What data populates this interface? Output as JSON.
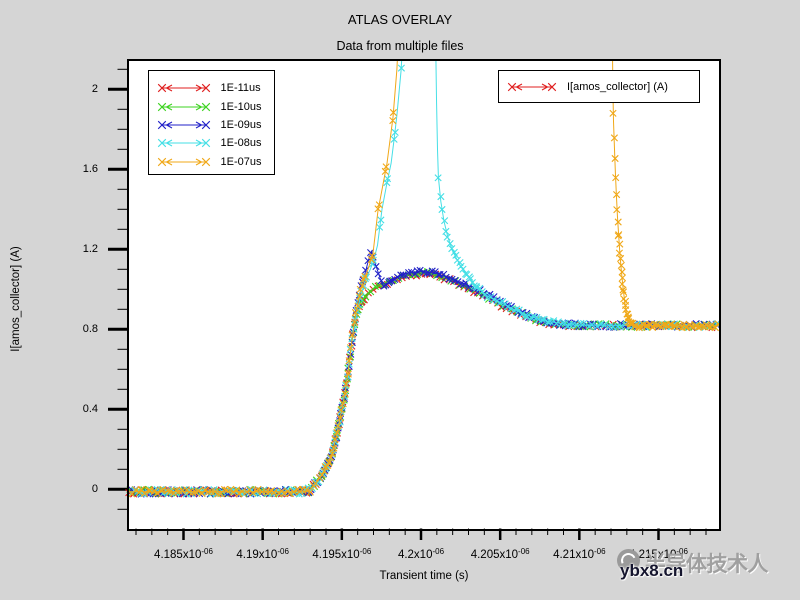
{
  "title": "ATLAS OVERLAY",
  "subtitle": "Data from multiple files",
  "axes": {
    "x": {
      "label": "Transient time (s)",
      "unit": "s",
      "major_ticks": [
        {
          "t": 4.185,
          "mant": "4.185x10",
          "exp": "-06"
        },
        {
          "t": 4.19,
          "mant": "4.19x10",
          "exp": "-06"
        },
        {
          "t": 4.195,
          "mant": "4.195x10",
          "exp": "-06"
        },
        {
          "t": 4.2,
          "mant": "4.2x10",
          "exp": "-06"
        },
        {
          "t": 4.205,
          "mant": "4.205x10",
          "exp": "-06"
        },
        {
          "t": 4.21,
          "mant": "4.21x10",
          "exp": "-06"
        },
        {
          "t": 4.215,
          "mant": "4.215x10",
          "exp": "-06"
        }
      ],
      "minor": {
        "min": 4.182,
        "max": 4.218,
        "step": 0.001
      }
    },
    "y": {
      "label": "I[amos_collector] (A)",
      "major_ticks": [
        {
          "v": 0,
          "label": "0"
        },
        {
          "v": 0.4,
          "label": "0.4"
        },
        {
          "v": 0.8,
          "label": "0.8"
        },
        {
          "v": 1.2,
          "label": "1.2"
        },
        {
          "v": 1.6,
          "label": "1.6"
        },
        {
          "v": 2,
          "label": "2"
        }
      ],
      "minor": {
        "min": -0.1,
        "max": 2.1,
        "step": 0.1
      }
    }
  },
  "legend": {
    "entries": [
      {
        "label": "1E-11us",
        "color": "#e01f1f"
      },
      {
        "label": "1E-10us",
        "color": "#3ed321"
      },
      {
        "label": "1E-09us",
        "color": "#2121c8"
      },
      {
        "label": "1E-08us",
        "color": "#45dfe6"
      },
      {
        "label": "1E-07us",
        "color": "#f0a818"
      }
    ]
  },
  "legend2": {
    "label": "I[amos_collector] (A)",
    "color": "#e01f1f"
  },
  "watermark": {
    "site": "ybx8.cn",
    "text": "半导体技术人"
  },
  "chart_data": {
    "type": "line",
    "title": "ATLAS OVERLAY",
    "subtitle": "Data from multiple files",
    "xlabel": "Transient time (s)",
    "ylabel": "I[amos_collector] (A)",
    "x_unit": "1e-6 s",
    "xlim": [
      4.1815,
      4.2189
    ],
    "ylim": [
      -0.195,
      2.143
    ],
    "series": [
      {
        "name": "1E-11us",
        "color": "#e01f1f",
        "points": [
          [
            4.1816,
            -0.012
          ],
          [
            4.1928,
            -0.012
          ],
          [
            4.1931,
            0.005
          ],
          [
            4.1935,
            0.045
          ],
          [
            4.1938,
            0.075
          ],
          [
            4.194,
            0.11
          ],
          [
            4.1942,
            0.14
          ],
          [
            4.1944,
            0.18
          ],
          [
            4.1946,
            0.25
          ],
          [
            4.1948,
            0.32
          ],
          [
            4.195,
            0.4
          ],
          [
            4.1952,
            0.48
          ],
          [
            4.1954,
            0.59
          ],
          [
            4.1956,
            0.72
          ],
          [
            4.1958,
            0.82
          ],
          [
            4.196,
            0.9
          ],
          [
            4.1962,
            0.93
          ],
          [
            4.1965,
            0.965
          ],
          [
            4.1968,
            0.985
          ],
          [
            4.1972,
            1.005
          ],
          [
            4.1977,
            1.025
          ],
          [
            4.1984,
            1.05
          ],
          [
            4.1992,
            1.068
          ],
          [
            4.2,
            1.078
          ],
          [
            4.2009,
            1.068
          ],
          [
            4.2018,
            1.046
          ],
          [
            4.2028,
            1.012
          ],
          [
            4.2038,
            0.972
          ],
          [
            4.2048,
            0.932
          ],
          [
            4.2058,
            0.892
          ],
          [
            4.2066,
            0.862
          ],
          [
            4.2074,
            0.84
          ],
          [
            4.2083,
            0.826
          ],
          [
            4.2093,
            0.82
          ],
          [
            4.2102,
            0.817
          ],
          [
            4.2188,
            0.817
          ]
        ],
        "marker_segments": [
          [
            4.1816,
            4.1937,
            0.0002,
            1.2,
            0
          ],
          [
            4.1937,
            4.1964,
            0.0001,
            0.8,
            0
          ],
          [
            4.1964,
            4.2098,
            0.0003,
            0.9,
            0
          ],
          [
            4.2098,
            4.2188,
            0.00026,
            1.0,
            0
          ]
        ]
      },
      {
        "name": "1E-10us",
        "color": "#3ed321",
        "points": [
          [
            4.1816,
            -0.012
          ],
          [
            4.1928,
            -0.012
          ],
          [
            4.1931,
            0.005
          ],
          [
            4.1935,
            0.045
          ],
          [
            4.1938,
            0.075
          ],
          [
            4.194,
            0.11
          ],
          [
            4.1942,
            0.14
          ],
          [
            4.1944,
            0.18
          ],
          [
            4.1946,
            0.25
          ],
          [
            4.1948,
            0.32
          ],
          [
            4.195,
            0.4
          ],
          [
            4.1952,
            0.48
          ],
          [
            4.1954,
            0.59
          ],
          [
            4.1956,
            0.72
          ],
          [
            4.1958,
            0.82
          ],
          [
            4.196,
            0.9
          ],
          [
            4.1962,
            0.935
          ],
          [
            4.1965,
            0.972
          ],
          [
            4.1968,
            0.992
          ],
          [
            4.1972,
            1.012
          ],
          [
            4.1977,
            1.032
          ],
          [
            4.1984,
            1.057
          ],
          [
            4.1992,
            1.075
          ],
          [
            4.2,
            1.085
          ],
          [
            4.2009,
            1.075
          ],
          [
            4.2018,
            1.052
          ],
          [
            4.2028,
            1.018
          ],
          [
            4.2038,
            0.978
          ],
          [
            4.2048,
            0.938
          ],
          [
            4.2058,
            0.898
          ],
          [
            4.2066,
            0.868
          ],
          [
            4.2074,
            0.845
          ],
          [
            4.2083,
            0.829
          ],
          [
            4.2093,
            0.821
          ],
          [
            4.2102,
            0.818
          ],
          [
            4.2188,
            0.818
          ]
        ],
        "marker_segments": [
          [
            4.18164,
            4.1937,
            0.0002,
            1.2,
            0
          ],
          [
            4.19372,
            4.1964,
            0.0001,
            0.8,
            0
          ],
          [
            4.19648,
            4.2098,
            0.0003,
            0.9,
            0
          ],
          [
            4.20988,
            4.2188,
            0.00026,
            1.0,
            0
          ]
        ]
      },
      {
        "name": "1E-09us",
        "color": "#2121c8",
        "points": [
          [
            4.1816,
            -0.012
          ],
          [
            4.1928,
            -0.012
          ],
          [
            4.1931,
            0.005
          ],
          [
            4.1935,
            0.045
          ],
          [
            4.1938,
            0.075
          ],
          [
            4.194,
            0.11
          ],
          [
            4.1942,
            0.14
          ],
          [
            4.1944,
            0.18
          ],
          [
            4.1946,
            0.25
          ],
          [
            4.1948,
            0.32
          ],
          [
            4.195,
            0.4
          ],
          [
            4.1952,
            0.48
          ],
          [
            4.1954,
            0.59
          ],
          [
            4.1956,
            0.72
          ],
          [
            4.1958,
            0.82
          ],
          [
            4.196,
            0.92
          ],
          [
            4.1962,
            1.0
          ],
          [
            4.1965,
            1.09
          ],
          [
            4.1967,
            1.15
          ],
          [
            4.19688,
            1.19
          ],
          [
            4.1971,
            1.13
          ],
          [
            4.1974,
            1.06
          ],
          [
            4.19766,
            1.012
          ],
          [
            4.1979,
            1.03
          ],
          [
            4.1982,
            1.05
          ],
          [
            4.1986,
            1.068
          ],
          [
            4.1992,
            1.082
          ],
          [
            4.2,
            1.09
          ],
          [
            4.2009,
            1.08
          ],
          [
            4.2018,
            1.058
          ],
          [
            4.2028,
            1.026
          ],
          [
            4.2038,
            0.988
          ],
          [
            4.2048,
            0.948
          ],
          [
            4.2058,
            0.906
          ],
          [
            4.2066,
            0.875
          ],
          [
            4.2074,
            0.85
          ],
          [
            4.2083,
            0.833
          ],
          [
            4.2093,
            0.824
          ],
          [
            4.2102,
            0.819
          ],
          [
            4.2188,
            0.819
          ]
        ],
        "marker_segments": [
          [
            4.18168,
            4.1937,
            0.0002,
            1.2,
            0
          ],
          [
            4.19374,
            4.19635,
            0.0001,
            0.8,
            0
          ],
          [
            4.19635,
            4.198,
            0.00016,
            0.5,
            0
          ],
          [
            4.198,
            4.2098,
            0.00018,
            1.0,
            0
          ],
          [
            4.20996,
            4.2188,
            0.00024,
            1.0,
            0
          ]
        ]
      },
      {
        "name": "1E-08us",
        "color": "#45dfe6",
        "points": [
          [
            4.1816,
            -0.012
          ],
          [
            4.1928,
            -0.012
          ],
          [
            4.1931,
            0.005
          ],
          [
            4.1935,
            0.045
          ],
          [
            4.1938,
            0.075
          ],
          [
            4.194,
            0.11
          ],
          [
            4.1942,
            0.14
          ],
          [
            4.1944,
            0.18
          ],
          [
            4.1946,
            0.25
          ],
          [
            4.1948,
            0.32
          ],
          [
            4.195,
            0.4
          ],
          [
            4.1952,
            0.48
          ],
          [
            4.1954,
            0.59
          ],
          [
            4.1956,
            0.72
          ],
          [
            4.1958,
            0.82
          ],
          [
            4.196,
            0.9
          ],
          [
            4.1962,
            0.97
          ],
          [
            4.1965,
            1.05
          ],
          [
            4.1968,
            1.1
          ],
          [
            4.197,
            1.14
          ],
          [
            4.19725,
            1.22
          ],
          [
            4.19754,
            1.4
          ],
          [
            4.19782,
            1.52
          ],
          [
            4.19811,
            1.63
          ],
          [
            4.1983,
            1.75
          ],
          [
            4.19848,
            1.87
          ],
          [
            4.19874,
            2.09
          ],
          [
            4.1989,
            2.3
          ],
          [
            4.1999,
            3.0
          ],
          [
            4.2009,
            2.4
          ],
          [
            4.20098,
            1.95
          ],
          [
            4.20104,
            1.7
          ],
          [
            4.2011,
            1.56
          ],
          [
            4.20125,
            1.44
          ],
          [
            4.20145,
            1.34
          ],
          [
            4.2017,
            1.26
          ],
          [
            4.202,
            1.19
          ],
          [
            4.2024,
            1.13
          ],
          [
            4.2029,
            1.07
          ],
          [
            4.2035,
            1.015
          ],
          [
            4.2042,
            0.966
          ],
          [
            4.205,
            0.935
          ],
          [
            4.206,
            0.895
          ],
          [
            4.207,
            0.862
          ],
          [
            4.208,
            0.84
          ],
          [
            4.209,
            0.827
          ],
          [
            4.2098,
            0.821
          ],
          [
            4.2188,
            0.818
          ]
        ],
        "marker_segments": [
          [
            4.18172,
            4.1937,
            0.0002,
            1.2,
            0
          ],
          [
            4.19376,
            4.19645,
            0.0001,
            0.8,
            0
          ],
          [
            4.1965,
            4.19885,
            0.00045,
            0.4,
            1
          ],
          [
            4.2011,
            4.2035,
            0.00012,
            0.9,
            0
          ],
          [
            4.2035,
            4.2098,
            0.00018,
            0.9,
            0
          ],
          [
            4.2098,
            4.2188,
            0.00026,
            1.0,
            0
          ]
        ]
      },
      {
        "name": "1E-07us",
        "color": "#f0a818",
        "points": [
          [
            4.1816,
            -0.012
          ],
          [
            4.1928,
            -0.012
          ],
          [
            4.1931,
            0.005
          ],
          [
            4.1935,
            0.045
          ],
          [
            4.1938,
            0.075
          ],
          [
            4.194,
            0.11
          ],
          [
            4.1942,
            0.14
          ],
          [
            4.1944,
            0.18
          ],
          [
            4.1946,
            0.25
          ],
          [
            4.1948,
            0.32
          ],
          [
            4.195,
            0.4
          ],
          [
            4.1952,
            0.48
          ],
          [
            4.1954,
            0.59
          ],
          [
            4.1956,
            0.72
          ],
          [
            4.1958,
            0.84
          ],
          [
            4.196,
            0.93
          ],
          [
            4.1962,
            1.0
          ],
          [
            4.1964,
            1.05
          ],
          [
            4.19665,
            1.1
          ],
          [
            4.19697,
            1.18
          ],
          [
            4.19728,
            1.39
          ],
          [
            4.19785,
            1.63
          ],
          [
            4.19823,
            1.86
          ],
          [
            4.19848,
            2.1
          ],
          [
            4.1986,
            2.3
          ],
          [
            4.2,
            3.2
          ],
          [
            4.21,
            3.2
          ],
          [
            4.21205,
            2.5
          ],
          [
            4.21212,
            2.0
          ],
          [
            4.21216,
            1.84
          ],
          [
            4.21222,
            1.7
          ],
          [
            4.21228,
            1.58
          ],
          [
            4.21234,
            1.47
          ],
          [
            4.21241,
            1.36
          ],
          [
            4.21249,
            1.26
          ],
          [
            4.21257,
            1.17
          ],
          [
            4.21266,
            1.09
          ],
          [
            4.21276,
            1.01
          ],
          [
            4.21287,
            0.935
          ],
          [
            4.21297,
            0.884
          ],
          [
            4.21308,
            0.849
          ],
          [
            4.2132,
            0.83
          ],
          [
            4.21335,
            0.821
          ],
          [
            4.2136,
            0.817
          ],
          [
            4.2188,
            0.817
          ]
        ],
        "marker_segments": [
          [
            4.18176,
            4.1937,
            0.0002,
            1.2,
            0
          ],
          [
            4.19378,
            4.19635,
            0.0001,
            0.8,
            0
          ],
          [
            4.1964,
            4.19862,
            0.00045,
            0.4,
            1
          ],
          [
            4.21215,
            4.21249,
            4.7e-05,
            0.5,
            0
          ],
          [
            4.21249,
            4.21335,
            3.5e-05,
            0.8,
            0
          ],
          [
            4.21335,
            4.2188,
            0.00012,
            1.0,
            0
          ]
        ]
      }
    ]
  }
}
